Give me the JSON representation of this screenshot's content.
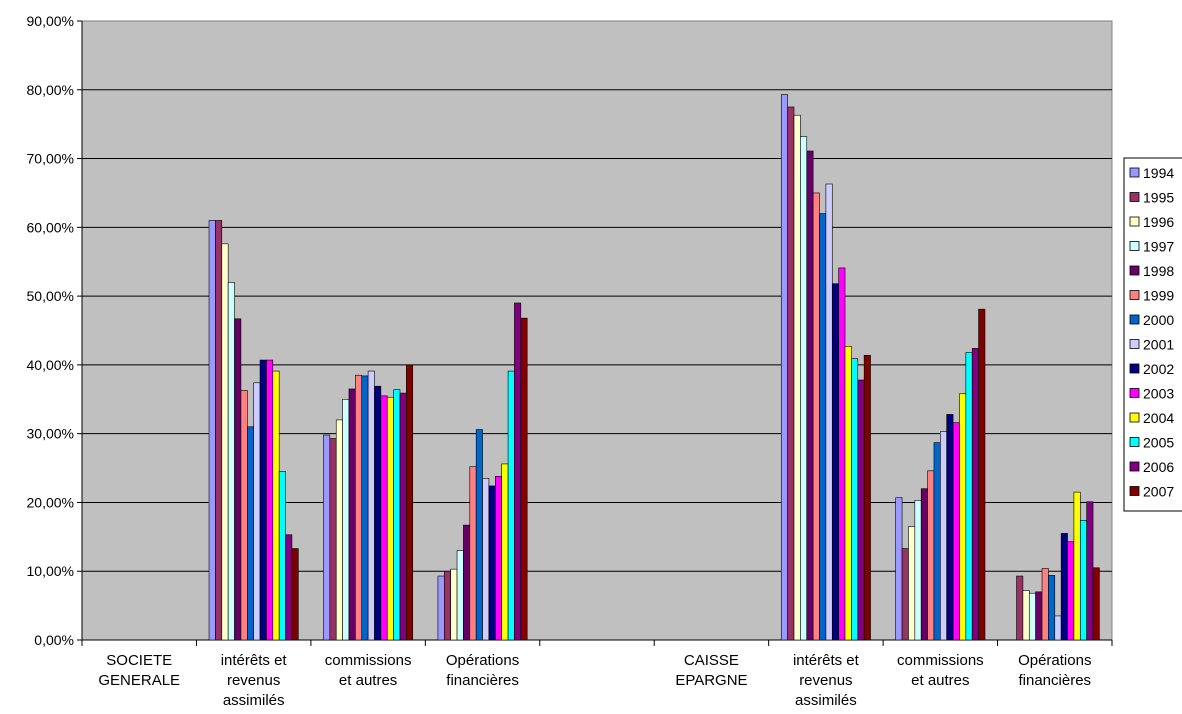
{
  "chart_data": {
    "type": "bar",
    "title": "",
    "xlabel": "",
    "ylabel": "",
    "ylim": [
      0,
      90
    ],
    "y_ticks": [
      "0,00%",
      "10,00%",
      "20,00%",
      "30,00%",
      "40,00%",
      "50,00%",
      "60,00%",
      "70,00%",
      "80,00%",
      "90,00%"
    ],
    "plot_background": "#C0C0C0",
    "grid": true,
    "legend_position": "right",
    "categories": [
      [
        "SOCIETE",
        "GENERALE"
      ],
      [
        "intérêts et",
        "revenus",
        "assimilés"
      ],
      [
        "commissions",
        "et autres"
      ],
      [
        "Opérations",
        "financières"
      ],
      [],
      [
        "CAISSE",
        "EPARGNE"
      ],
      [
        "intérêts et",
        "revenus",
        "assimilés"
      ],
      [
        "commissions",
        "et autres"
      ],
      [
        "Opérations",
        "financières"
      ]
    ],
    "series": [
      {
        "name": "1994",
        "color": "#9999FF",
        "values": [
          null,
          61.0,
          29.8,
          9.3,
          null,
          null,
          79.3,
          20.7,
          null
        ]
      },
      {
        "name": "1995",
        "color": "#993366",
        "values": [
          null,
          61.0,
          29.3,
          10.0,
          null,
          null,
          77.5,
          13.3,
          9.3
        ]
      },
      {
        "name": "1996",
        "color": "#FFFFCC",
        "values": [
          null,
          57.6,
          32.0,
          10.3,
          null,
          null,
          76.3,
          16.5,
          7.2
        ]
      },
      {
        "name": "1997",
        "color": "#CCFFFF",
        "values": [
          null,
          52.0,
          35.0,
          13.0,
          null,
          null,
          73.2,
          20.3,
          6.8
        ]
      },
      {
        "name": "1998",
        "color": "#660066",
        "values": [
          null,
          46.7,
          36.5,
          16.7,
          null,
          null,
          71.1,
          22.0,
          7.0
        ]
      },
      {
        "name": "1999",
        "color": "#FF8080",
        "values": [
          null,
          36.3,
          38.5,
          25.2,
          null,
          null,
          65.0,
          24.6,
          10.4
        ]
      },
      {
        "name": "2000",
        "color": "#0066CC",
        "values": [
          null,
          31.0,
          38.4,
          30.6,
          null,
          null,
          62.0,
          28.7,
          9.4
        ]
      },
      {
        "name": "2001",
        "color": "#CCCCFF",
        "values": [
          null,
          37.4,
          39.1,
          23.5,
          null,
          null,
          66.3,
          30.3,
          3.5
        ]
      },
      {
        "name": "2002",
        "color": "#000080",
        "values": [
          null,
          40.7,
          36.9,
          22.4,
          null,
          null,
          51.8,
          32.8,
          15.5
        ]
      },
      {
        "name": "2003",
        "color": "#FF00FF",
        "values": [
          null,
          40.7,
          35.5,
          23.8,
          null,
          null,
          54.1,
          31.6,
          14.3
        ]
      },
      {
        "name": "2004",
        "color": "#FFFF00",
        "values": [
          null,
          39.1,
          35.3,
          25.6,
          null,
          null,
          42.7,
          35.8,
          21.5
        ]
      },
      {
        "name": "2005",
        "color": "#00FFFF",
        "values": [
          null,
          24.5,
          36.4,
          39.1,
          null,
          null,
          40.9,
          41.8,
          17.4
        ]
      },
      {
        "name": "2006",
        "color": "#800080",
        "values": [
          null,
          15.3,
          35.9,
          49.0,
          null,
          null,
          37.8,
          42.4,
          20.1
        ]
      },
      {
        "name": "2007",
        "color": "#800000",
        "values": [
          null,
          13.3,
          40.0,
          46.8,
          null,
          null,
          41.4,
          48.1,
          10.5
        ]
      }
    ]
  }
}
